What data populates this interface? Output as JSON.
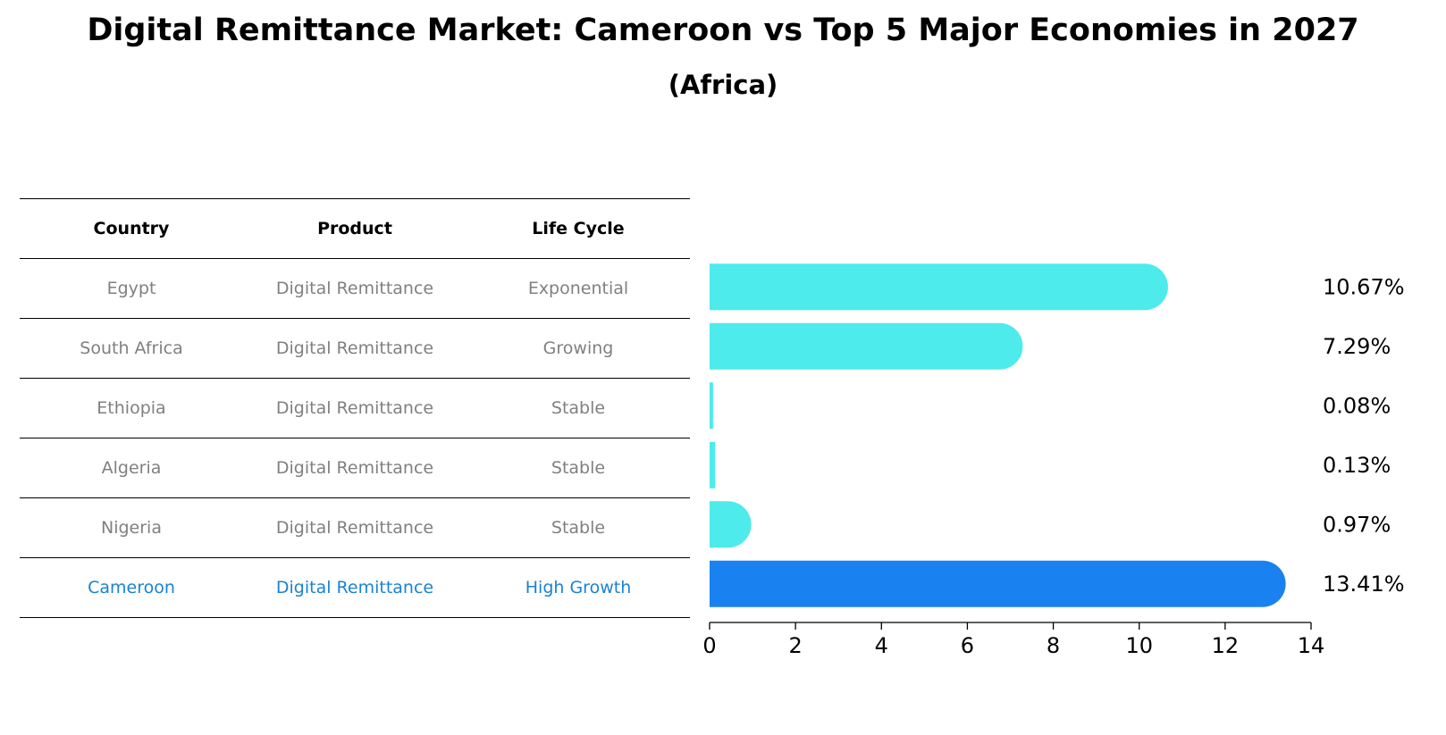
{
  "title": "Digital Remittance Market: Cameroon vs Top 5 Major Economies in 2027",
  "subtitle": "(Africa)",
  "table": {
    "headers": [
      "Country",
      "Product",
      "Life Cycle"
    ],
    "rows": [
      {
        "country": "Egypt",
        "product": "Digital Remittance",
        "life_cycle": "Exponential"
      },
      {
        "country": "South Africa",
        "product": "Digital Remittance",
        "life_cycle": "Growing"
      },
      {
        "country": "Ethiopia",
        "product": "Digital Remittance",
        "life_cycle": "Stable"
      },
      {
        "country": "Algeria",
        "product": "Digital Remittance",
        "life_cycle": "Stable"
      },
      {
        "country": "Nigeria",
        "product": "Digital Remittance",
        "life_cycle": "Stable"
      },
      {
        "country": "Cameroon",
        "product": "Digital Remittance",
        "life_cycle": "High Growth"
      }
    ],
    "highlight_color": "#1a82d4",
    "text_color": "#808080"
  },
  "chart_data": {
    "type": "bar",
    "orientation": "horizontal",
    "categories": [
      "Egypt",
      "South Africa",
      "Ethiopia",
      "Algeria",
      "Nigeria",
      "Cameroon"
    ],
    "values": [
      10.67,
      7.29,
      0.08,
      0.13,
      0.97,
      13.41
    ],
    "value_labels": [
      "10.67%",
      "7.29%",
      "0.08%",
      "0.13%",
      "0.97%",
      "13.41%"
    ],
    "xlim": [
      0,
      14
    ],
    "xticks": [
      0,
      2,
      4,
      6,
      8,
      10,
      12,
      14
    ],
    "grid": false,
    "colors": {
      "default": "#4debeb",
      "highlight": "#1a82f0"
    },
    "highlight_category": "Cameroon"
  }
}
